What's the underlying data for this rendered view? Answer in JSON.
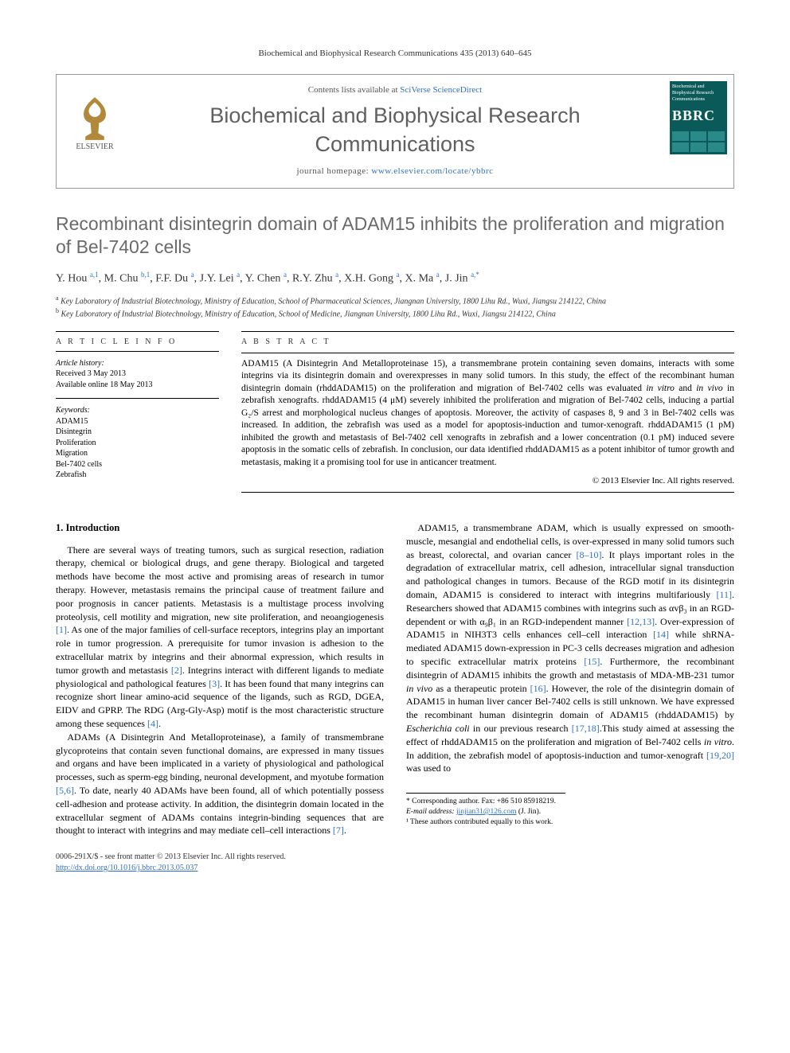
{
  "running_head": "Biochemical and Biophysical Research Communications 435 (2013) 640–645",
  "header": {
    "contents_prefix": "Contents lists available at ",
    "contents_link": "SciVerse ScienceDirect",
    "journal_title": "Biochemical and Biophysical Research Communications",
    "homepage_label": "journal homepage: ",
    "homepage_url": "www.elsevier.com/locate/ybbrc",
    "elsevier_label": "ELSEVIER",
    "cover_small": "Biochemical and Biophysical Research Communications",
    "cover_abbrev": "BBRC"
  },
  "title": "Recombinant disintegrin domain of ADAM15 inhibits the proliferation and migration of Bel-7402 cells",
  "authors_html": "Y. Hou <sup>a,1</sup>, M. Chu <sup>b,1</sup>, F.F. Du <sup>a</sup>, J.Y. Lei <sup>a</sup>, Y. Chen <sup>a</sup>, R.Y. Zhu <sup>a</sup>, X.H. Gong <sup>a</sup>, X. Ma <sup>a</sup>, J. Jin <sup>a,*</sup>",
  "affiliations": [
    {
      "marker": "a",
      "text": "Key Laboratory of Industrial Biotechnology, Ministry of Education, School of Pharmaceutical Sciences, Jiangnan University, 1800 Lihu Rd., Wuxi, Jiangsu 214122, China"
    },
    {
      "marker": "b",
      "text": "Key Laboratory of Industrial Biotechnology, Ministry of Education, School of Medicine, Jiangnan University, 1800 Lihu Rd., Wuxi, Jiangsu 214122, China"
    }
  ],
  "article_info": {
    "heading": "A R T I C L E   I N F O",
    "history_label": "Article history:",
    "received": "Received 3 May 2013",
    "online": "Available online 18 May 2013",
    "keywords_label": "Keywords:",
    "keywords": [
      "ADAM15",
      "Disintegrin",
      "Proliferation",
      "Migration",
      "Bel-7402 cells",
      "Zebrafish"
    ]
  },
  "abstract": {
    "heading": "A B S T R A C T",
    "text": "ADAM15 (A Disintegrin And Metalloproteinase 15), a transmembrane protein containing seven domains, interacts with some integrins via its disintegrin domain and overexpresses in many solid tumors. In this study, the effect of the recombinant human disintegrin domain (rhddADAM15) on the proliferation and migration of Bel-7402 cells was evaluated in vitro and in vivo in zebrafish xenografts. rhddADAM15 (4 μM) severely inhibited the proliferation and migration of Bel-7402 cells, inducing a partial G₂/S arrest and morphological nucleus changes of apoptosis. Moreover, the activity of caspases 8, 9 and 3 in Bel-7402 cells was increased. In addition, the zebrafish was used as a model for apoptosis-induction and tumor-xenograft. rhddADAM15 (1 pM) inhibited the growth and metastasis of Bel-7402 cell xenografts in zebrafish and a lower concentration (0.1 pM) induced severe apoptosis in the somatic cells of zebrafish. In conclusion, our data identified rhddADAM15 as a potent inhibitor of tumor growth and metastasis, making it a promising tool for use in anticancer treatment.",
    "copyright": "© 2013 Elsevier Inc. All rights reserved."
  },
  "body": {
    "section_heading": "1. Introduction",
    "p1": "There are several ways of treating tumors, such as surgical resection, radiation therapy, chemical or biological drugs, and gene therapy. Biological and targeted methods have become the most active and promising areas of research in tumor therapy. However, metastasis remains the principal cause of treatment failure and poor prognosis in cancer patients. Metastasis is a multistage process involving proteolysis, cell motility and migration, new site proliferation, and neoangiogenesis [1]. As one of the major families of cell-surface receptors, integrins play an important role in tumor progression. A prerequisite for tumor invasion is adhesion to the extracellular matrix by integrins and their abnormal expression, which results in tumor growth and metastasis [2]. Integrins interact with different ligands to mediate physiological and pathological features [3]. It has been found that many integrins can recognize short linear amino-acid sequence of the ligands, such as RGD, DGEA, EIDV and GPRP. The RDG (Arg-Gly-Asp) motif is the most characteristic structure among these sequences [4].",
    "p2": "ADAMs (A Disintegrin And Metalloproteinase), a family of transmembrane glycoproteins that contain seven functional domains, are expressed in many tissues and organs and have been implicated in a variety of physiological and pathological processes, such as sperm-egg binding, neuronal development, and myotube formation [5,6]. To date, nearly 40 ADAMs have been found, all of which potentially possess cell-adhesion and protease activity. In addition, the disintegrin domain located in the extracellular segment of ADAMs contains integrin-binding sequences that are thought to interact with integrins and may mediate cell–cell interactions [7].",
    "p3": "ADAM15, a transmembrane ADAM, which is usually expressed on smooth-muscle, mesangial and endothelial cells, is over-expressed in many solid tumors such as breast, colorectal, and ovarian cancer [8–10]. It plays important roles in the degradation of extracellular matrix, cell adhesion, intracellular signal transduction and pathological changes in tumors. Because of the RGD motif in its disintegrin domain, ADAM15 is considered to interact with integrins multifariously [11]. Researchers showed that ADAM15 combines with integrins such as αvβ₃ in an RGD-dependent or with α₉β₁ in an RGD-independent manner [12,13]. Over-expression of ADAM15 in NIH3T3 cells enhances cell–cell interaction [14] while shRNA-mediated ADAM15 down-expression in PC-3 cells decreases migration and adhesion to specific extracellular matrix proteins [15]. Furthermore, the recombinant disintegrin of ADAM15 inhibits the growth and metastasis of MDA-MB-231 tumor in vivo as a therapeutic protein [16]. However, the role of the disintegrin domain of ADAM15 in human liver cancer Bel-7402 cells is still unknown. We have expressed the recombinant human disintegrin domain of ADAM15 (rhddADAM15) by Escherichia coli in our previous research [17,18].This study aimed at assessing the effect of rhddADAM15 on the proliferation and migration of Bel-7402 cells in vitro. In addition, the zebrafish model of apoptosis-induction and tumor-xenograft [19,20] was used to"
  },
  "footnotes": {
    "corresponding": "* Corresponding author. Fax: +86 510 85918219.",
    "email_label": "E-mail address: ",
    "email": "jinjian31@126.com",
    "email_tail": " (J. Jin).",
    "equal": "¹ These authors contributed equally to this work."
  },
  "footer": {
    "issn": "0006-291X/$ - see front matter © 2013 Elsevier Inc. All rights reserved.",
    "doi": "http://dx.doi.org/10.1016/j.bbrc.2013.05.037"
  },
  "colors": {
    "link": "#3070c0",
    "title_gray": "#6a6a6a",
    "elsevier_orange": "#b0893a",
    "cover_teal": "#0a5a5a"
  }
}
